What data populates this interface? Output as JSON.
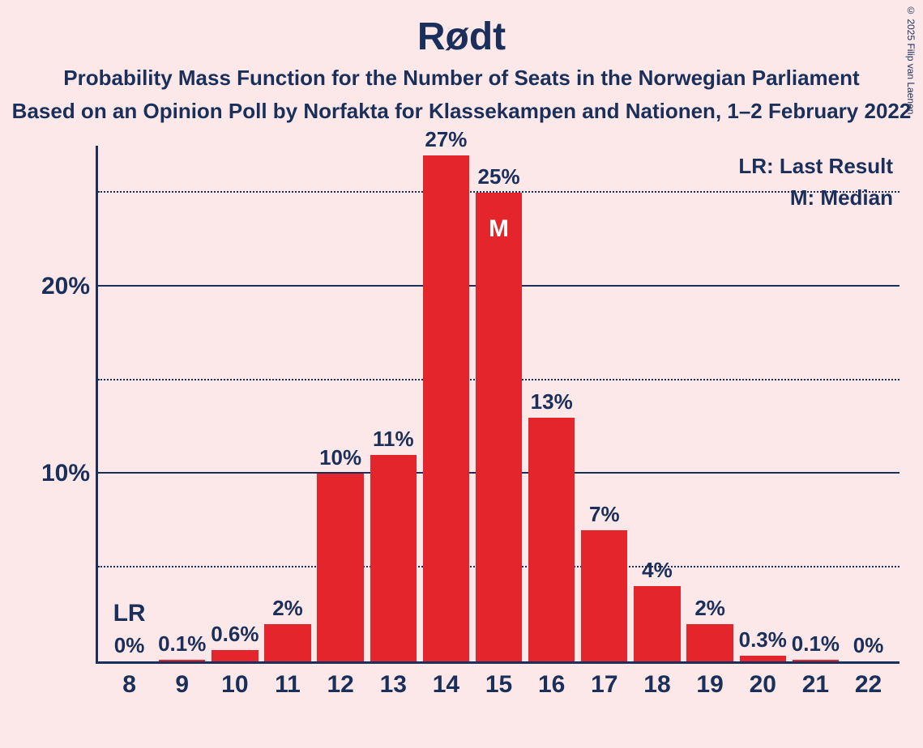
{
  "title": "Rødt",
  "subtitle1": "Probability Mass Function for the Number of Seats in the Norwegian Parliament",
  "subtitle2": "Based on an Opinion Poll by Norfakta for Klassekampen and Nationen, 1–2 February 2022",
  "credit": "© 2025 Filip van Laenen",
  "legend": {
    "lr": "LR: Last Result",
    "m": "M: Median"
  },
  "chart": {
    "type": "bar",
    "background_color": "#fce8e8",
    "bar_color": "#e4252c",
    "axis_color": "#1a2f5a",
    "text_color": "#1a2f5a",
    "median_text_color": "#ffffff",
    "grid_color": "#1a2f5a",
    "bar_width": 0.88,
    "title_fontsize": 48,
    "subtitle_fontsize": 26,
    "tick_fontsize": 30,
    "barlabel_fontsize": 26,
    "ymax_display": 27.5,
    "y_major_ticks": [
      10,
      20
    ],
    "y_minor_ticks": [
      5,
      15,
      25
    ],
    "categories": [
      8,
      9,
      10,
      11,
      12,
      13,
      14,
      15,
      16,
      17,
      18,
      19,
      20,
      21,
      22
    ],
    "values": [
      0,
      0.1,
      0.6,
      2,
      10,
      11,
      27,
      25,
      13,
      7,
      4,
      2,
      0.3,
      0.1,
      0
    ],
    "value_labels": [
      "0%",
      "0.1%",
      "0.6%",
      "2%",
      "10%",
      "11%",
      "27%",
      "25%",
      "13%",
      "7%",
      "4%",
      "2%",
      "0.3%",
      "0.1%",
      "0%"
    ],
    "median_index": 7,
    "median_marker": "M",
    "lr_index": 0,
    "lr_marker": "LR",
    "ytick_labels": {
      "10": "10%",
      "20": "20%"
    }
  }
}
